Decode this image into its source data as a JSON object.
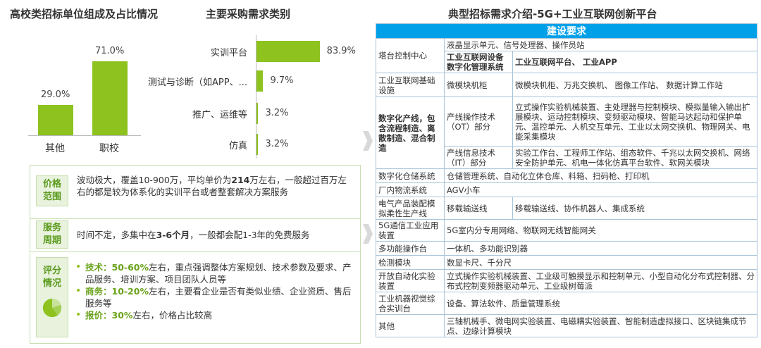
{
  "left_chart": {
    "title": "高校类招标单位组成及占比情况"
  },
  "mid_chart": {
    "title": "主要采购需求类别"
  },
  "chart_data": [
    {
      "type": "bar",
      "title": "高校类招标单位组成及占比情况",
      "categories": [
        "其他",
        "职校"
      ],
      "values": [
        29.0,
        71.0
      ],
      "value_labels": [
        "29.0%",
        "71.0%"
      ],
      "ylim": [
        0,
        100
      ]
    },
    {
      "type": "bar",
      "orientation": "horizontal",
      "title": "主要采购需求类别",
      "categories": [
        "实训平台",
        "测试与诊断（如APP、...",
        "推广、运维等",
        "仿真"
      ],
      "values": [
        83.9,
        9.7,
        3.2,
        3.2
      ],
      "value_labels": [
        "83.9%",
        "9.7%",
        "3.2%",
        "3.2%"
      ],
      "xlim": [
        0,
        100
      ]
    }
  ],
  "info": {
    "price": {
      "tag": "价格范围",
      "text_pre": "波动极大，覆盖10-900万，平均单价为",
      "text_bold": "214",
      "text_post": "万左右，一般超过百万左右的都是较为体系化的实训平台或者整套解决方案服务"
    },
    "cycle": {
      "tag": "服务周期",
      "text_pre": "时间不定，多集中在",
      "text_bold": "3-6个月",
      "text_post": "，一般都会配1-3年的免费服务"
    },
    "eval": {
      "tag": "评分情况",
      "pie_values": [
        50,
        20,
        30
      ],
      "items": [
        {
          "key": "技术：",
          "bold": "50-60%",
          "text": "左右，重点强调整体方案规划、技术参数及要求、产品服务、培训方案、项目团队人员等"
        },
        {
          "key": "商务：",
          "bold": "10-20%",
          "text": "左右，主要看企业是否有类似业绩、企业资质、售后服务等"
        },
        {
          "key": "报价：",
          "bold": "30%",
          "text": "左右，价格占比较高"
        }
      ]
    }
  },
  "table": {
    "title": "典型招标需求介绍-5G+工业互联网创新平台",
    "header": "建设要求",
    "r1": {
      "name": "塔台控制中心",
      "a": "液晶显示单元、信号处理器、操作员站",
      "b1": "工业互联网设备数字化管理系统",
      "b2": "工业互联网平台、 工业APP"
    },
    "r2": {
      "name": "工业互联网基础设施",
      "a": "微模块机柜",
      "b": "微模块机柜、万兆交换机、 图像工作站、 数据计算工作站"
    },
    "r3": {
      "name": "数字化产线，包含流程制造、离散制造、混合制造",
      "a1": "产线操作技术（OT）部分",
      "b1": "立式操作实验机械装置、主处理器与控制模块、模拟量输入输出扩展模块、运动控制模块、变频驱动模块、智能马达起动和保护单元、温控单元、人机交互单元、工业以太网交换机、物理网关、电能采集模块",
      "a2": "产线信息技术（IT）部分",
      "b2": "实验工作台、工程师工作站、组态软件、千兆以太网交换机、网络安全防护单元、机电一体化仿真平台软件、软网关模块"
    },
    "r4": {
      "name": "数字化仓储系统",
      "v": "仓储管理系统、自动化立体仓库、料箱、扫码枪、打印机"
    },
    "r5": {
      "name": "厂内物流系统",
      "v": "AGV小车"
    },
    "r6": {
      "name": "电气产品装配模拟柔性生产线",
      "a": "移载输送线",
      "b": "移载输送线、协作机器人、集成系统"
    },
    "r7": {
      "name": "5G通信工业应用装置",
      "v": "5G室内分专用网络、物联网无线智能网关"
    },
    "r8": {
      "name": "多功能操作台",
      "v": "一体机、多功能识别器"
    },
    "r9": {
      "name": "检测模块",
      "v": "数显卡尺、千分尺"
    },
    "r10": {
      "name": "开放自动化实验装置",
      "v": "立式操作实验机械装置、工业级可触摸显示和控制单元、小型自动化分布式控制器、分布式控制变频器驱动单元、工业级树莓派"
    },
    "r11": {
      "name": "工业机器视觉综合实训台",
      "v": "设备、算法软件、质量管理系统"
    },
    "r12": {
      "name": "其他",
      "v": "三轴机械手、微电网实验装置、电磁耦实验装置、智能制造虚拟接口、区块链集成节点、边缘计算模块"
    }
  }
}
